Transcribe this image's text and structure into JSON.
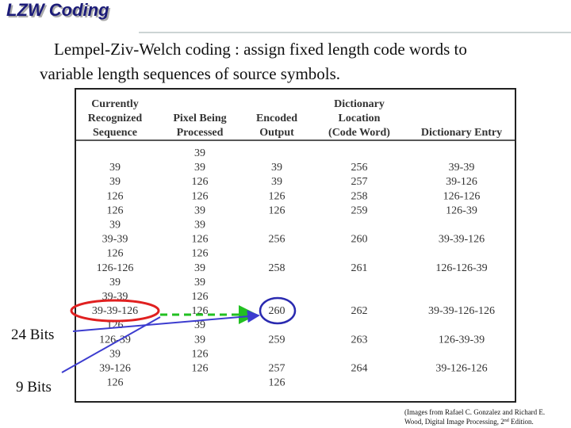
{
  "header": {
    "title": "LZW Coding"
  },
  "intro": {
    "lines": [
      "Lempel-Ziv-Welch coding : assign fixed length code words to",
      "variable length sequences of source symbols."
    ]
  },
  "table": {
    "headers": [
      [
        "Currently",
        "Recognized",
        "Sequence"
      ],
      [
        "Pixel Being",
        "Processed"
      ],
      [
        "Encoded",
        "Output"
      ],
      [
        "Dictionary",
        "Location",
        "(Code Word)"
      ],
      [
        "Dictionary Entry"
      ]
    ],
    "rows": [
      [
        null,
        "39",
        null,
        null,
        null
      ],
      [
        "39",
        "39",
        "39",
        "256",
        "39-39"
      ],
      [
        "39",
        "126",
        "39",
        "257",
        "39-126"
      ],
      [
        "126",
        "126",
        "126",
        "258",
        "126-126"
      ],
      [
        "126",
        "39",
        "126",
        "259",
        "126-39"
      ],
      [
        "39",
        "39",
        null,
        null,
        null
      ],
      [
        "39-39",
        "126",
        "256",
        "260",
        "39-39-126"
      ],
      [
        "126",
        "126",
        null,
        null,
        null
      ],
      [
        "126-126",
        "39",
        "258",
        "261",
        "126-126-39"
      ],
      [
        "39",
        "39",
        null,
        null,
        null
      ],
      [
        "39-39",
        "126",
        null,
        null,
        null
      ],
      [
        "39-39-126",
        "126",
        "260",
        "262",
        "39-39-126-126"
      ],
      [
        "126",
        "39",
        null,
        null,
        null
      ],
      [
        "126-39",
        "39",
        "259",
        "263",
        "126-39-39"
      ],
      [
        "39",
        "126",
        null,
        null,
        null
      ],
      [
        "39-126",
        "126",
        "257",
        "264",
        "39-126-126"
      ],
      [
        "126",
        null,
        "126",
        null,
        null
      ]
    ]
  },
  "annotations": {
    "bits24": "24 Bits",
    "bits9": "9 Bits"
  },
  "citation": {
    "line1": "(Images from Rafael C. Gonzalez and Richard E.",
    "line2": "Wood, Digital Image Processing, 2",
    "sup": "nd",
    "end": " Edition."
  }
}
